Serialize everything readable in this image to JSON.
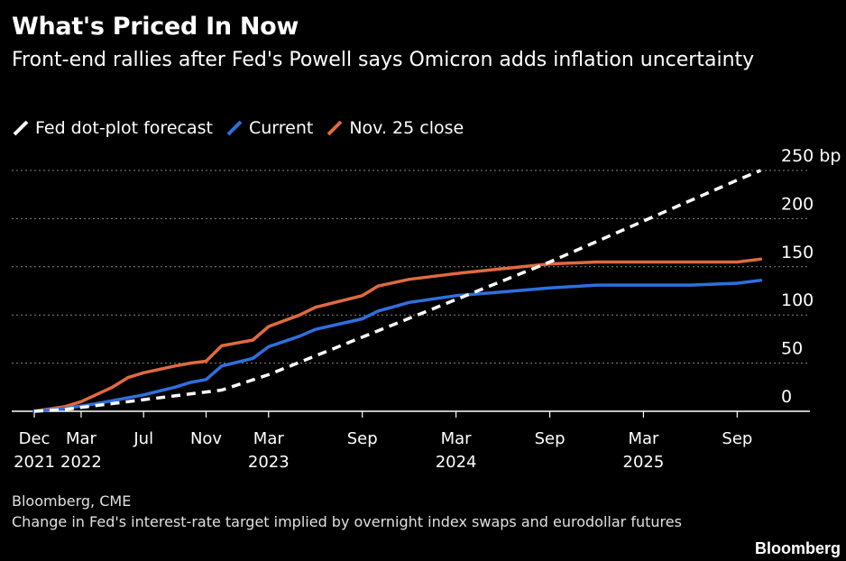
{
  "title": "What's Priced In Now",
  "subtitle": "Front-end rallies after Fed's Powell says Omicron adds inflation uncertainty",
  "footer": {
    "source": "Bloomberg, CME",
    "note": "Change in Fed's interest-rate target implied by overnight index swaps and eurodollar futures"
  },
  "brand": "Bloomberg",
  "legend": [
    {
      "name": "Fed dot-plot forecast",
      "color": "#ffffff",
      "icon": "slash-dashed"
    },
    {
      "name": "Current",
      "color": "#2f6fe0",
      "icon": "slash-solid"
    },
    {
      "name": "Nov. 25 close",
      "color": "#e06a3f",
      "icon": "slash-solid"
    }
  ],
  "chart_data": {
    "type": "line",
    "title": "What's Priced In Now",
    "ylabel": "bp",
    "y_unit_label": "250 bp",
    "ylim": [
      0,
      250
    ],
    "yticks": [
      0,
      50,
      100,
      150,
      200,
      250
    ],
    "ytick_labels": [
      "0",
      "50",
      "100",
      "150",
      "200",
      "250 bp"
    ],
    "x_unit": "months since Dec 2021",
    "xlim": [
      0,
      47
    ],
    "xticks": [
      {
        "m": 0,
        "label": "Dec",
        "year": "2021"
      },
      {
        "m": 3,
        "label": "Mar",
        "year": "2022"
      },
      {
        "m": 7,
        "label": "Jul",
        "year": ""
      },
      {
        "m": 11,
        "label": "Nov",
        "year": ""
      },
      {
        "m": 15,
        "label": "Mar",
        "year": "2023"
      },
      {
        "m": 21,
        "label": "Sep",
        "year": ""
      },
      {
        "m": 27,
        "label": "Mar",
        "year": "2024"
      },
      {
        "m": 33,
        "label": "Sep",
        "year": ""
      },
      {
        "m": 39,
        "label": "Mar",
        "year": "2025"
      },
      {
        "m": 45,
        "label": "Sep",
        "year": ""
      }
    ],
    "grid": true,
    "series": [
      {
        "name": "Fed dot-plot forecast",
        "color": "#ffffff",
        "dashed": true,
        "points": [
          [
            0,
            0
          ],
          [
            2,
            2
          ],
          [
            6,
            10
          ],
          [
            11,
            20
          ],
          [
            12,
            22
          ],
          [
            15,
            38
          ],
          [
            33,
            155
          ],
          [
            45,
            240
          ],
          [
            46.5,
            250
          ]
        ]
      },
      {
        "name": "Current",
        "color": "#2f6fe0",
        "dashed": false,
        "points": [
          [
            0,
            0
          ],
          [
            2,
            3
          ],
          [
            4,
            8
          ],
          [
            7,
            17
          ],
          [
            9,
            25
          ],
          [
            10,
            30
          ],
          [
            11,
            33
          ],
          [
            12,
            47
          ],
          [
            14,
            55
          ],
          [
            15,
            67
          ],
          [
            17,
            78
          ],
          [
            18,
            85
          ],
          [
            21,
            96
          ],
          [
            22,
            104
          ],
          [
            24,
            113
          ],
          [
            27,
            120
          ],
          [
            30,
            124
          ],
          [
            33,
            128
          ],
          [
            36,
            131
          ],
          [
            39,
            131
          ],
          [
            42,
            131
          ],
          [
            45,
            133
          ],
          [
            46.5,
            136
          ]
        ]
      },
      {
        "name": "Nov. 25 close",
        "color": "#e06a3f",
        "dashed": false,
        "points": [
          [
            0,
            0
          ],
          [
            2,
            5
          ],
          [
            3,
            10
          ],
          [
            5,
            25
          ],
          [
            6,
            35
          ],
          [
            7,
            40
          ],
          [
            9,
            47
          ],
          [
            10,
            50
          ],
          [
            11,
            52
          ],
          [
            12,
            68
          ],
          [
            14,
            74
          ],
          [
            15,
            88
          ],
          [
            17,
            100
          ],
          [
            18,
            108
          ],
          [
            21,
            120
          ],
          [
            22,
            130
          ],
          [
            24,
            137
          ],
          [
            27,
            143
          ],
          [
            30,
            148
          ],
          [
            33,
            153
          ],
          [
            36,
            155
          ],
          [
            39,
            155
          ],
          [
            42,
            155
          ],
          [
            45,
            155
          ],
          [
            46.5,
            158
          ]
        ]
      }
    ]
  }
}
